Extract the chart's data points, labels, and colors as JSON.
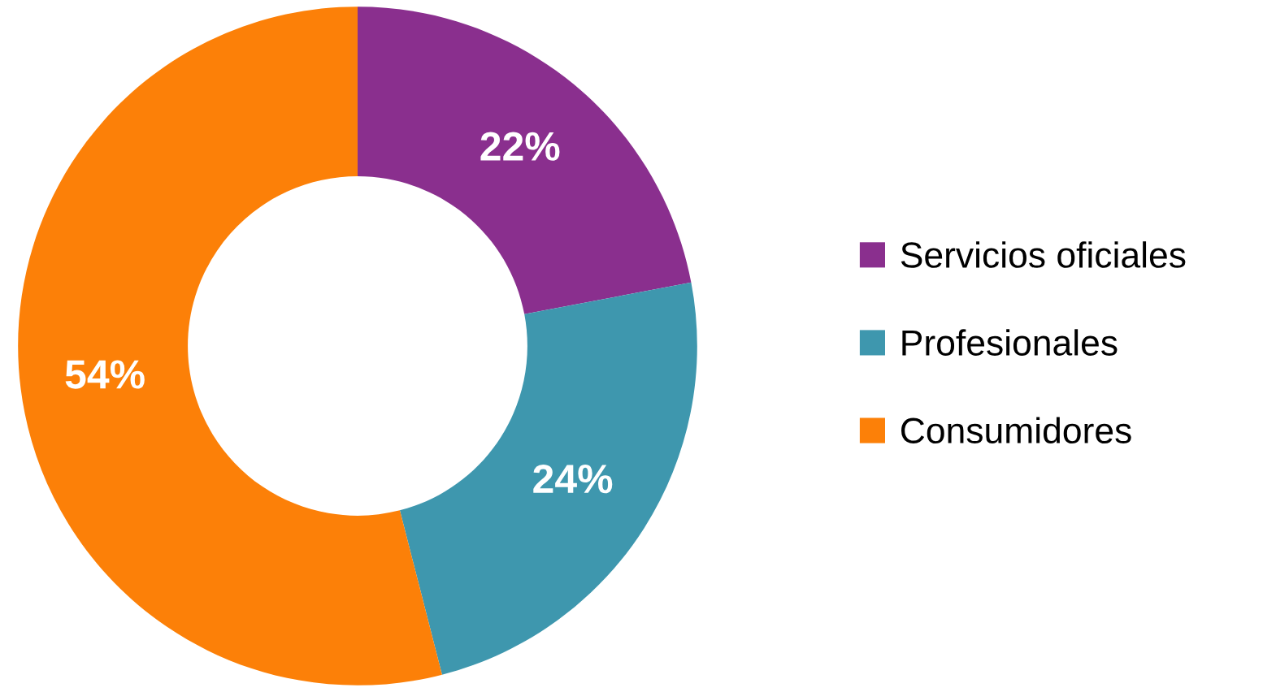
{
  "chart_data": {
    "type": "donut",
    "categories": [
      "Servicios oficiales",
      "Profesionales",
      "Consumidores"
    ],
    "values": [
      22,
      24,
      54
    ],
    "value_labels": [
      "22%",
      "24%",
      "54%"
    ],
    "colors": [
      "#8a2f8e",
      "#3e97ae",
      "#fc8008"
    ],
    "legend": "right"
  }
}
